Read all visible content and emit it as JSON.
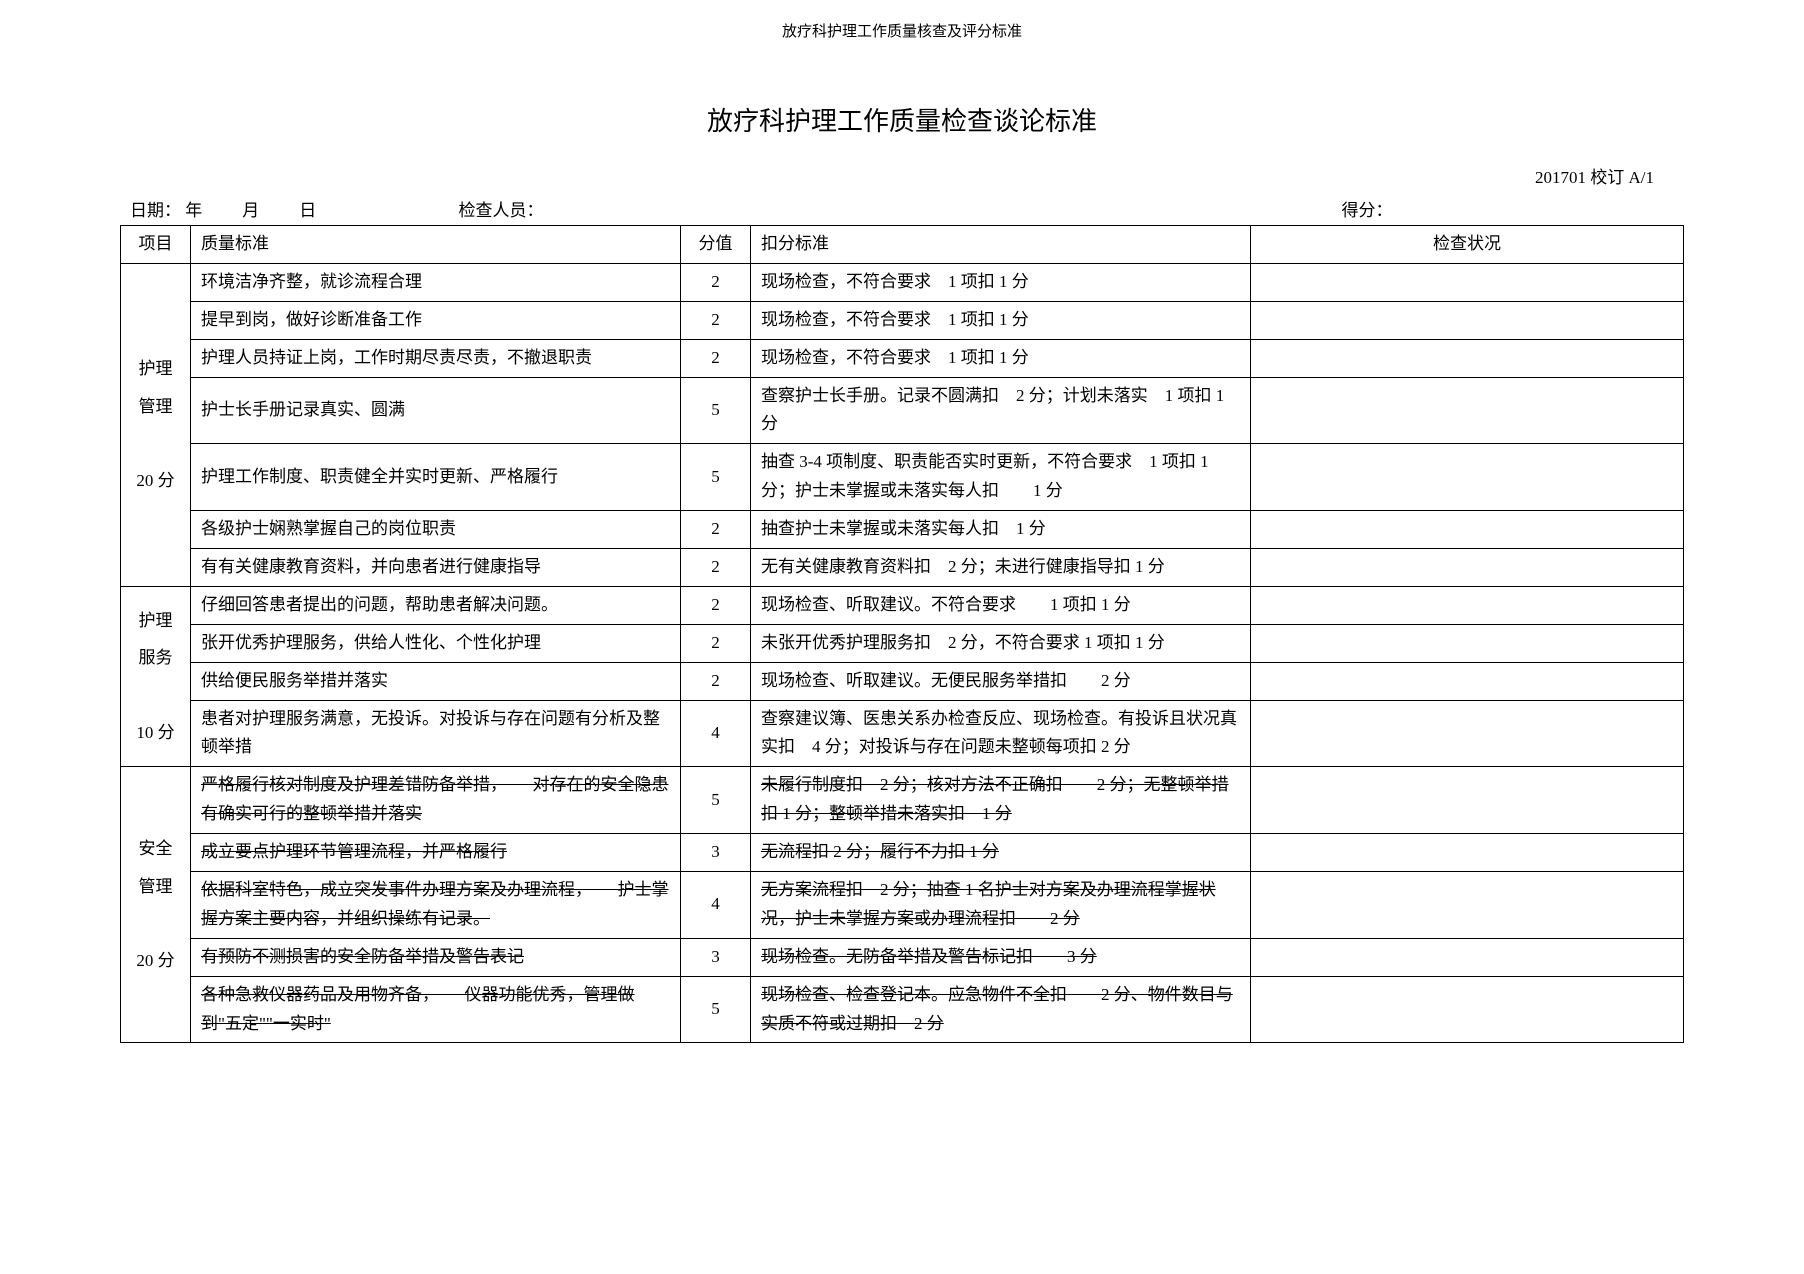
{
  "header_small": "放疗科护理工作质量核查及评分标准",
  "title_main": "放疗科护理工作质量检查谈论标准",
  "revision": "201701 校订 A/1",
  "meta": {
    "date_label": "日期：",
    "date_slots": "年　　月　　日",
    "inspector_label": "检查人员：",
    "score_label": "得分："
  },
  "headers": {
    "category": "项目",
    "standard": "质量标准",
    "score": "分值",
    "deduction": "扣分标准",
    "check": "检查状况"
  },
  "groups": [
    {
      "cat_lines": [
        "护理",
        "管理",
        "",
        "20 分"
      ],
      "rows": [
        {
          "std": "环境洁净齐整，就诊流程合理",
          "score": "2",
          "ded": "现场检查，不符合要求　1 项扣 1 分"
        },
        {
          "std": "提早到岗，做好诊断准备工作",
          "score": "2",
          "ded": "现场检查，不符合要求　1 项扣 1 分"
        },
        {
          "std": "护理人员持证上岗，工作时期尽责尽责，不撤退职责",
          "score": "2",
          "ded": "现场检查，不符合要求　1 项扣 1 分"
        },
        {
          "std": "护士长手册记录真实、圆满",
          "score": "5",
          "ded": "查察护士长手册。记录不圆满扣　2 分；计划未落实　1 项扣 1 分"
        },
        {
          "std": "护理工作制度、职责健全并实时更新、严格履行",
          "score": "5",
          "ded": "抽查 3-4 项制度、职责能否实时更新，不符合要求　1 项扣 1 分；护士未掌握或未落实每人扣　　1 分"
        },
        {
          "std": "各级护士娴熟掌握自己的岗位职责",
          "score": "2",
          "ded": "抽查护士未掌握或未落实每人扣　1 分"
        },
        {
          "std": "有有关健康教育资料，并向患者进行健康指导",
          "score": "2",
          "ded": "无有关健康教育资料扣　2 分；未进行健康指导扣 1 分"
        }
      ]
    },
    {
      "cat_lines": [
        "护理",
        "服务",
        "",
        "10 分"
      ],
      "rows": [
        {
          "std": "仔细回答患者提出的问题，帮助患者解决问题。",
          "score": "2",
          "ded": "现场检查、听取建议。不符合要求　　1 项扣 1 分"
        },
        {
          "std": "张开优秀护理服务，供给人性化、个性化护理",
          "score": "2",
          "ded": "未张开优秀护理服务扣　2 分，不符合要求 1 项扣 1 分"
        },
        {
          "std": "供给便民服务举措并落实",
          "score": "2",
          "ded": "现场检查、听取建议。无便民服务举措扣　　2 分"
        },
        {
          "std": "患者对护理服务满意，无投诉。对投诉与存在问题有分析及整顿举措",
          "score": "4",
          "ded": "查察建议簿、医患关系办检查反应、现场检查。有投诉且状况真实扣　4 分；对投诉与存在问题未整顿每项扣 2 分"
        }
      ]
    },
    {
      "cat_lines": [
        "安全",
        "管理",
        "",
        "20 分"
      ],
      "rows": [
        {
          "std": "严格履行核对制度及护理差错防备举措，　　对存在的安全隐患有确实可行的整顿举措并落实",
          "score": "5",
          "ded": "未履行制度扣　2 分；核对方法不正确扣　　2 分；无整顿举措扣 1 分；整顿举措未落实扣　1 分",
          "strike_std": true,
          "strike_ded": true
        },
        {
          "std": "成立要点护理环节管理流程，并严格履行",
          "score": "3",
          "ded": "无流程扣 2 分；履行不力扣 1 分",
          "strike_std": true,
          "strike_ded": true
        },
        {
          "std": "依据科室特色，成立突发事件办理方案及办理流程，　　护士掌握方案主要内容，并组织操练有记录。",
          "score": "4",
          "ded": "无方案流程扣　2 分；抽查 1 名护士对方案及办理流程掌握状况，护士未掌握方案或办理流程扣　　2 分",
          "strike_std": true,
          "strike_ded": true
        },
        {
          "std": "有预防不测损害的安全防备举措及警告表记",
          "score": "3",
          "ded": "现场检查。无防备举措及警告标记扣　　3 分",
          "strike_std": true,
          "strike_ded": true
        },
        {
          "std": "各种急救仪器药品及用物齐备，　　仪器功能优秀，管理做到\"五定\"\"一实时\"",
          "score": "5",
          "ded": "现场检查、检查登记本。应急物件不全扣　　2 分、物件数目与实质不符或过期扣　2 分",
          "strike_std": true,
          "strike_ded": true
        }
      ]
    }
  ]
}
